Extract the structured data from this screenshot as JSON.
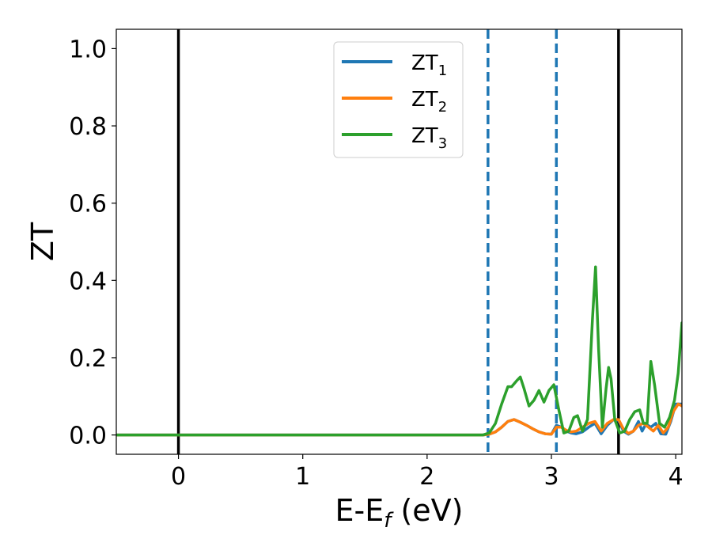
{
  "chart_data": {
    "type": "line",
    "xlabel": "E-E",
    "xlabel_sub": "f",
    "xlabel_unit": " (eV)",
    "ylabel": "ZT",
    "xlim": [
      -0.5,
      4.05
    ],
    "ylim": [
      -0.05,
      1.05
    ],
    "x_ticks": [
      0,
      1,
      2,
      3,
      4
    ],
    "x_tick_labels": [
      "0",
      "1",
      "2",
      "3",
      "4"
    ],
    "y_ticks": [
      0.0,
      0.2,
      0.4,
      0.6,
      0.8,
      1.0
    ],
    "y_tick_labels": [
      "0.0",
      "0.2",
      "0.4",
      "0.6",
      "0.8",
      "1.0"
    ],
    "grid": false,
    "legend_position": "top-center",
    "vlines_solid": [
      0.0,
      3.54
    ],
    "vlines_dashed": [
      2.49,
      3.04
    ],
    "vline_solid_color": "#000000",
    "vline_dashed_color": "#1f77b4",
    "series": [
      {
        "name": "ZT",
        "name_sub": "1",
        "color": "#1f77b4",
        "x": [
          -0.5,
          2.45,
          2.5,
          2.55,
          2.6,
          2.65,
          2.7,
          2.75,
          2.8,
          2.85,
          2.9,
          2.95,
          3.0,
          3.04,
          3.08,
          3.12,
          3.16,
          3.2,
          3.25,
          3.3,
          3.35,
          3.4,
          3.45,
          3.5,
          3.54,
          3.58,
          3.62,
          3.66,
          3.7,
          3.73,
          3.76,
          3.8,
          3.84,
          3.88,
          3.92,
          3.96,
          4.0,
          4.05
        ],
        "y": [
          0.0,
          0.0,
          0.002,
          0.008,
          0.02,
          0.035,
          0.04,
          0.033,
          0.025,
          0.016,
          0.008,
          0.003,
          0.002,
          0.025,
          0.02,
          0.01,
          0.005,
          0.003,
          0.008,
          0.02,
          0.03,
          0.003,
          0.025,
          0.04,
          0.038,
          0.01,
          0.002,
          0.01,
          0.035,
          0.01,
          0.028,
          0.02,
          0.03,
          0.003,
          0.002,
          0.035,
          0.08,
          0.08
        ]
      },
      {
        "name": "ZT",
        "name_sub": "2",
        "color": "#ff7f0e",
        "x": [
          -0.5,
          2.45,
          2.5,
          2.55,
          2.6,
          2.65,
          2.7,
          2.75,
          2.8,
          2.85,
          2.9,
          2.95,
          3.0,
          3.04,
          3.08,
          3.12,
          3.16,
          3.2,
          3.25,
          3.3,
          3.35,
          3.4,
          3.45,
          3.5,
          3.54,
          3.58,
          3.62,
          3.66,
          3.7,
          3.74,
          3.78,
          3.82,
          3.86,
          3.9,
          3.94,
          3.98,
          4.02,
          4.05
        ],
        "y": [
          0.0,
          0.0,
          0.002,
          0.008,
          0.02,
          0.035,
          0.04,
          0.033,
          0.025,
          0.016,
          0.008,
          0.003,
          0.002,
          0.02,
          0.02,
          0.012,
          0.008,
          0.01,
          0.02,
          0.03,
          0.035,
          0.01,
          0.03,
          0.04,
          0.04,
          0.015,
          0.004,
          0.01,
          0.025,
          0.03,
          0.02,
          0.01,
          0.025,
          0.005,
          0.02,
          0.06,
          0.08,
          0.075
        ]
      },
      {
        "name": "ZT",
        "name_sub": "3",
        "color": "#2ca02c",
        "x": [
          -0.5,
          2.45,
          2.5,
          2.55,
          2.6,
          2.65,
          2.68,
          2.72,
          2.75,
          2.78,
          2.82,
          2.86,
          2.9,
          2.94,
          2.98,
          3.02,
          3.06,
          3.1,
          3.14,
          3.18,
          3.21,
          3.25,
          3.29,
          3.33,
          3.355,
          3.38,
          3.41,
          3.44,
          3.46,
          3.48,
          3.51,
          3.55,
          3.59,
          3.63,
          3.67,
          3.71,
          3.74,
          3.77,
          3.8,
          3.83,
          3.87,
          3.91,
          3.95,
          3.99,
          4.02,
          4.05
        ],
        "y": [
          0.0,
          0.0,
          0.005,
          0.03,
          0.08,
          0.125,
          0.125,
          0.14,
          0.15,
          0.12,
          0.075,
          0.09,
          0.115,
          0.085,
          0.115,
          0.13,
          0.065,
          0.005,
          0.01,
          0.045,
          0.05,
          0.01,
          0.04,
          0.3,
          0.435,
          0.22,
          0.02,
          0.12,
          0.175,
          0.145,
          0.04,
          0.005,
          0.01,
          0.04,
          0.06,
          0.065,
          0.03,
          0.03,
          0.19,
          0.13,
          0.03,
          0.02,
          0.045,
          0.09,
          0.16,
          0.29
        ]
      }
    ]
  }
}
